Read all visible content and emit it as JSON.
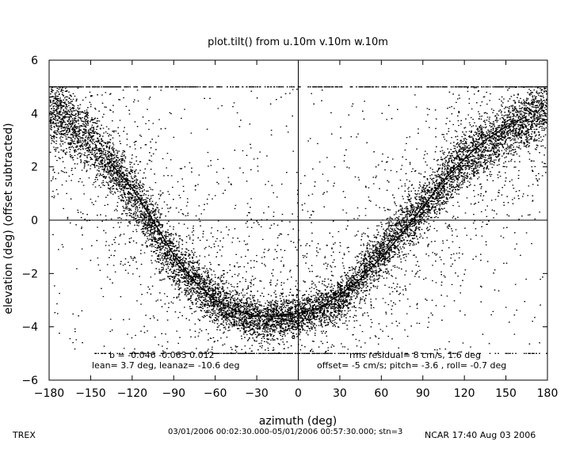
{
  "chart_data": {
    "type": "scatter",
    "title": "plot.tilt() from u.10m v.10m w.10m",
    "xlabel": "azimuth (deg)",
    "ylabel": "elevation (deg)  (offset subtracted)",
    "xlim": [
      -180,
      180
    ],
    "ylim": [
      -6,
      6
    ],
    "xticks": [
      -180,
      -150,
      -120,
      -90,
      -60,
      -30,
      0,
      30,
      60,
      90,
      120,
      150,
      180
    ],
    "yticks": [
      -6,
      -4,
      -2,
      0,
      2,
      4,
      6
    ],
    "reference_lines": {
      "x": 0,
      "y": 0
    },
    "fit_curve": {
      "x": [
        -135,
        -120,
        -105,
        -90,
        -75,
        -60,
        -45,
        -30,
        -15,
        0,
        15,
        30,
        45,
        60,
        75,
        90,
        105,
        120,
        135,
        150,
        165
      ],
      "y": [
        2.1,
        1.2,
        0.0,
        -1.3,
        -2.3,
        -3.0,
        -3.4,
        -3.6,
        -3.6,
        -3.5,
        -3.3,
        -2.8,
        -2.2,
        -1.4,
        -0.5,
        0.5,
        1.5,
        2.3,
        3.0,
        3.5,
        3.9
      ]
    },
    "scatter_density": {
      "description_note": "dense V-shaped cloud of ~20000 points",
      "center_curve_x": [
        -180,
        -150,
        -120,
        -90,
        -60,
        -30,
        0,
        30,
        60,
        90,
        120,
        150,
        180
      ],
      "center_curve_y": [
        4.2,
        3.0,
        1.0,
        -1.5,
        -3.0,
        -3.7,
        -3.6,
        -3.0,
        -1.2,
        0.5,
        2.3,
        3.3,
        4.3
      ],
      "clipped_max": 5,
      "clipped_min": -5
    },
    "annotations": {
      "left_line1": "b = -0.046  -0.063  0.012",
      "left_line2": "lean= 3.7 deg, leanaz= -10.6 deg",
      "right_line1": "rms residual= 8 cm/s, 1.6 deg",
      "right_line2": "offset= -5 cm/s; pitch= -3.6 , roll= -0.7 deg"
    }
  },
  "footer": {
    "left": "TREX",
    "center": "03/01/2006 00:02:30.000-05/01/2006 00:57:30.000; stn=3",
    "right": "NCAR 17:40 Aug 03 2006"
  },
  "style": {
    "axis_color": "#000000",
    "point_color": "#000000",
    "background": "#ffffff"
  }
}
